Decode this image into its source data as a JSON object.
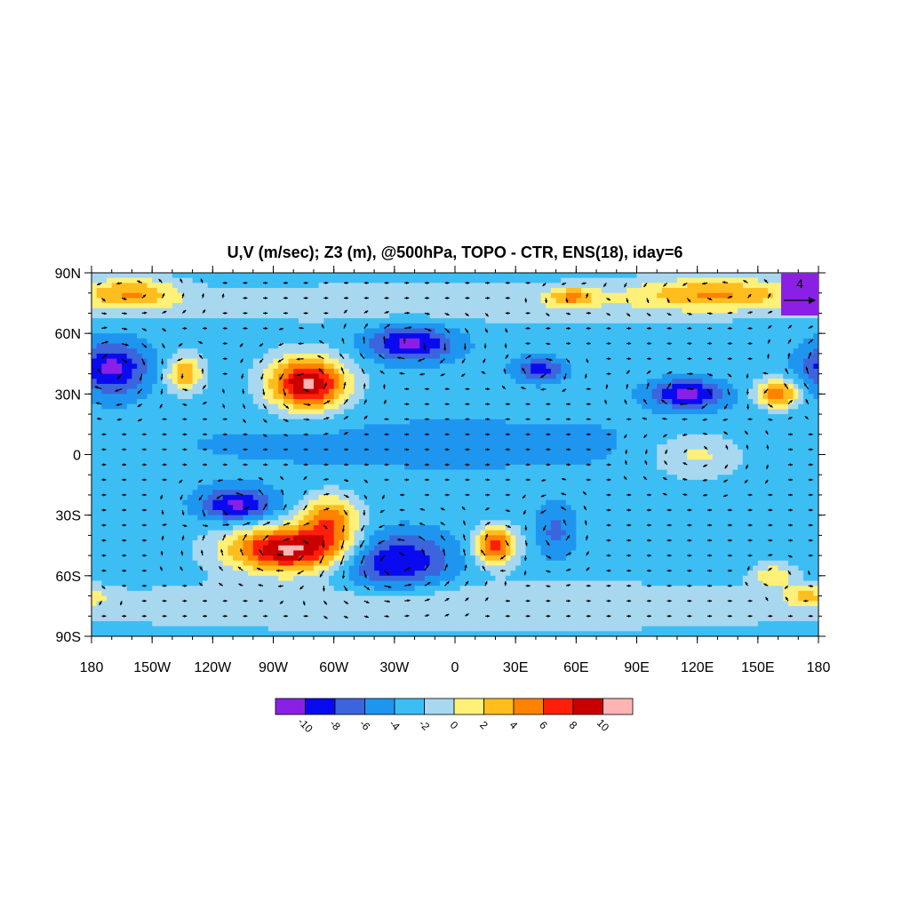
{
  "title": "U,V (m/sec); Z3 (m), @500hPa, TOPO - CTR, ENS(18), iday=6",
  "x_ticks": [
    "180",
    "150W",
    "120W",
    "90W",
    "60W",
    "30W",
    "0",
    "30E",
    "60E",
    "90E",
    "120E",
    "150E",
    "180"
  ],
  "y_ticks": [
    "90N",
    "60N",
    "30N",
    "0",
    "30S",
    "60S",
    "90S"
  ],
  "reference_vector": {
    "label": "4",
    "units": "m/sec",
    "box_color": "#8a20e6"
  },
  "colorbar": {
    "labels": [
      "-10",
      "-8",
      "-6",
      "-4",
      "-2",
      "0",
      "2",
      "4",
      "6",
      "8",
      "10"
    ],
    "colors": [
      "#8a20e6",
      "#0a0af0",
      "#3c64dc",
      "#1e96f0",
      "#3cbef5",
      "#a8d8f0",
      "#fff078",
      "#ffbe1e",
      "#ff8200",
      "#ff1e0a",
      "#c80000",
      "#ffb4b4"
    ]
  },
  "chart_data": {
    "type": "heatmap",
    "title": "U,V (m/sec); Z3 (m), @500hPa, TOPO - CTR, ENS(18), iday=6",
    "variable": "Z3 difference (m) filled contours with U,V wind vectors",
    "x_range": [
      -180,
      180
    ],
    "y_range": [
      -90,
      90
    ],
    "levels": [
      -10,
      -8,
      -6,
      -4,
      -2,
      0,
      2,
      4,
      6,
      8,
      10
    ],
    "background_value": -3,
    "anomalies": [
      {
        "lon": -170,
        "lat": 43,
        "value": -10.5,
        "rx": 18,
        "ry": 13
      },
      {
        "lon": -134,
        "lat": 40,
        "value": 4.0,
        "rx": 9,
        "ry": 9
      },
      {
        "lon": -73,
        "lat": 35,
        "value": 10.5,
        "rx": 19,
        "ry": 13
      },
      {
        "lon": -22,
        "lat": 55,
        "value": -10.5,
        "rx": 22,
        "ry": 9
      },
      {
        "lon": 42,
        "lat": 42,
        "value": -9.0,
        "rx": 12,
        "ry": 6
      },
      {
        "lon": 115,
        "lat": 30,
        "value": -10.5,
        "rx": 18,
        "ry": 7
      },
      {
        "lon": 160,
        "lat": 30,
        "value": 5.5,
        "rx": 11,
        "ry": 7
      },
      {
        "lon": -160,
        "lat": 80,
        "value": 3.0,
        "rx": 22,
        "ry": 8
      },
      {
        "lon": 130,
        "lat": 80,
        "value": 3.0,
        "rx": 40,
        "ry": 8
      },
      {
        "lon": 58,
        "lat": 78,
        "value": 2.5,
        "rx": 12,
        "ry": 5
      },
      {
        "lon": 120,
        "lat": 0,
        "value": 1.2,
        "rx": 25,
        "ry": 12
      },
      {
        "lon": -108,
        "lat": -25,
        "value": -10.5,
        "rx": 18,
        "ry": 8
      },
      {
        "lon": -82,
        "lat": -47,
        "value": 10.5,
        "rx": 30,
        "ry": 11
      },
      {
        "lon": -62,
        "lat": -32,
        "value": 5.0,
        "rx": 14,
        "ry": 12
      },
      {
        "lon": -30,
        "lat": -53,
        "value": -10.5,
        "rx": 28,
        "ry": 14
      },
      {
        "lon": 20,
        "lat": -45,
        "value": 7.5,
        "rx": 10,
        "ry": 9
      },
      {
        "lon": 50,
        "lat": -38,
        "value": -6.5,
        "rx": 10,
        "ry": 13
      },
      {
        "lon": 158,
        "lat": -60,
        "value": 1.5,
        "rx": 10,
        "ry": 6
      },
      {
        "lon": 175,
        "lat": -70,
        "value": 1.5,
        "rx": 12,
        "ry": 5
      },
      {
        "lon": 0,
        "lat": -75,
        "value": 0.0,
        "rx": 200,
        "ry": 12
      },
      {
        "lon": 0,
        "lat": 75,
        "value": -0.6,
        "rx": 200,
        "ry": 10
      },
      {
        "lon": 0,
        "lat": 5,
        "value": -4.5,
        "rx": 200,
        "ry": 18
      }
    ]
  }
}
